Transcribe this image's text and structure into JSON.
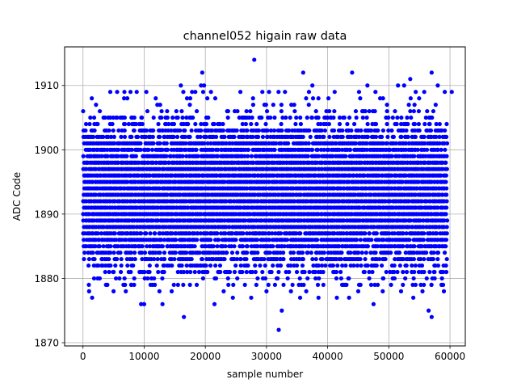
{
  "chart_data": {
    "type": "scatter",
    "title": "channel052 higain raw data",
    "xlabel": "sample number",
    "ylabel": "ADC Code",
    "xlim": [
      -3000,
      62500
    ],
    "ylim": [
      1869.5,
      1916
    ],
    "x_ticks": [
      0,
      10000,
      20000,
      30000,
      40000,
      50000,
      60000
    ],
    "x_tick_labels": [
      "0",
      "10000",
      "20000",
      "30000",
      "40000",
      "50000",
      "60000"
    ],
    "y_ticks": [
      1870,
      1880,
      1890,
      1900,
      1910
    ],
    "y_tick_labels": [
      "1870",
      "1880",
      "1890",
      "1900",
      "1910"
    ],
    "grid": true,
    "marker_color": "#0000ff",
    "series": [
      {
        "x_range": [
          0,
          59500
        ],
        "dense_band": [
          1879,
          1906
        ],
        "points": [
          [
            28000,
            1914
          ],
          [
            19500,
            1912
          ],
          [
            36000,
            1912
          ],
          [
            44000,
            1912
          ],
          [
            57000,
            1912
          ],
          [
            16000,
            1910
          ],
          [
            19300,
            1910
          ],
          [
            19800,
            1910
          ],
          [
            37500,
            1910
          ],
          [
            46500,
            1910
          ],
          [
            51500,
            1910
          ],
          [
            52500,
            1910
          ],
          [
            58000,
            1910
          ],
          [
            53500,
            1911
          ],
          [
            16500,
            1874
          ],
          [
            57000,
            1874
          ],
          [
            32000,
            1872
          ],
          [
            32500,
            1875
          ],
          [
            56500,
            1875
          ],
          [
            9500,
            1876
          ],
          [
            10000,
            1876
          ],
          [
            13000,
            1876
          ],
          [
            21500,
            1876
          ],
          [
            47500,
            1876
          ],
          [
            1500,
            1877
          ],
          [
            24500,
            1877
          ],
          [
            27500,
            1877
          ],
          [
            35500,
            1877
          ],
          [
            38500,
            1877
          ],
          [
            41500,
            1877
          ],
          [
            43500,
            1877
          ],
          [
            54000,
            1877
          ],
          [
            1000,
            1878
          ],
          [
            5000,
            1878
          ],
          [
            7000,
            1878
          ],
          [
            12500,
            1878
          ],
          [
            14500,
            1878
          ],
          [
            23000,
            1878
          ],
          [
            30000,
            1878
          ],
          [
            34000,
            1878
          ],
          [
            36500,
            1878
          ],
          [
            45000,
            1878
          ],
          [
            49000,
            1878
          ],
          [
            52000,
            1878
          ],
          [
            55500,
            1878
          ],
          [
            59000,
            1878
          ]
        ]
      }
    ]
  }
}
